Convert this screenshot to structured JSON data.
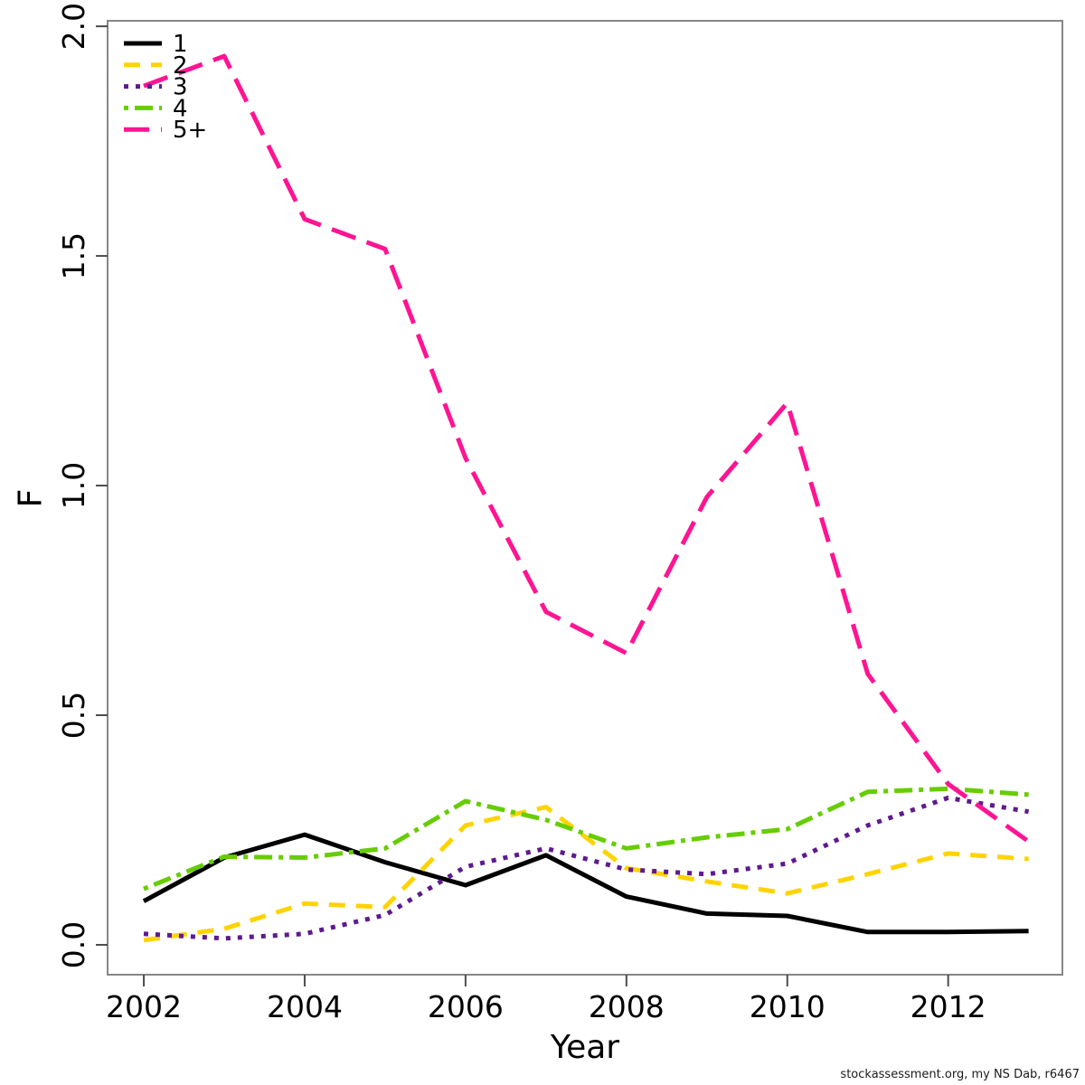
{
  "chart_data": {
    "type": "line",
    "title": "",
    "xlabel": "Year",
    "ylabel": "F",
    "grid": false,
    "legend_position": "top-left",
    "xlim": [
      2001.55,
      2013.42
    ],
    "ylim": [
      -0.065,
      2.012
    ],
    "x_ticks": [
      2002,
      2004,
      2006,
      2008,
      2010,
      2012
    ],
    "y_ticks": [
      0.0,
      0.5,
      1.0,
      1.5,
      2.0
    ],
    "y_tick_labels": [
      "0.0",
      "0.5",
      "1.0",
      "1.5",
      "2.0"
    ],
    "x": [
      2002,
      2003,
      2004,
      2005,
      2006,
      2007,
      2008,
      2009,
      2010,
      2011,
      2012,
      2013
    ],
    "series": [
      {
        "name": "1",
        "color": "#000000",
        "linestyle": "solid",
        "values": [
          0.095,
          0.19,
          0.24,
          0.18,
          0.13,
          0.195,
          0.105,
          0.068,
          0.063,
          0.028,
          0.028,
          0.03
        ]
      },
      {
        "name": "2",
        "color": "#FFD300",
        "linestyle": "dashed",
        "values": [
          0.01,
          0.035,
          0.09,
          0.082,
          0.26,
          0.3,
          0.167,
          0.138,
          0.112,
          0.154,
          0.199,
          0.187
        ]
      },
      {
        "name": "3",
        "color": "#5E1A8E",
        "linestyle": "dotted",
        "values": [
          0.024,
          0.014,
          0.024,
          0.065,
          0.17,
          0.21,
          0.164,
          0.154,
          0.177,
          0.26,
          0.32,
          0.29
        ]
      },
      {
        "name": "4",
        "color": "#66CD00",
        "linestyle": "dashdot",
        "values": [
          0.122,
          0.192,
          0.19,
          0.21,
          0.313,
          0.272,
          0.21,
          0.234,
          0.252,
          0.333,
          0.34,
          0.327
        ]
      },
      {
        "name": "5+",
        "color": "#FF1493",
        "linestyle": "longdash",
        "values": [
          1.87,
          1.935,
          1.58,
          1.515,
          1.06,
          0.725,
          0.635,
          0.975,
          1.18,
          0.59,
          0.35,
          0.225
        ]
      }
    ]
  },
  "footer": {
    "credit": "stockassessment.org, my NS Dab, r6467"
  }
}
